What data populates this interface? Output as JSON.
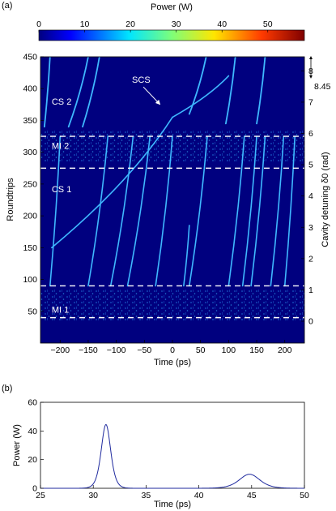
{
  "panels": {
    "a": "(a)",
    "b": "(b)"
  },
  "chart_data": [
    {
      "type": "heatmap",
      "colorbar": {
        "label": "Power (W)",
        "range": [
          0,
          58
        ],
        "ticks": [
          0,
          10,
          20,
          30,
          40,
          50
        ],
        "tick_labels": [
          "0",
          "10",
          "20",
          "30",
          "40",
          "50"
        ]
      },
      "xlabel": "Time (ps)",
      "ylabel": "Roundtrips",
      "y2label": "Cavity detuning δ0 (rad)",
      "xlim": [
        -235,
        235
      ],
      "ylim": [
        0,
        450
      ],
      "y2lim": [
        -0.7,
        8.45
      ],
      "xticks": [
        -200,
        -150,
        -100,
        -50,
        0,
        50,
        100,
        150,
        200
      ],
      "xtick_labels": [
        "−200",
        "−150",
        "−100",
        "−50",
        "0",
        "50",
        "100",
        "150",
        "200"
      ],
      "yticks": [
        50,
        100,
        150,
        200,
        250,
        300,
        350,
        400,
        450
      ],
      "ytick_labels": [
        "50",
        "100",
        "150",
        "200",
        "250",
        "300",
        "350",
        "400",
        "450"
      ],
      "y2ticks": [
        0,
        1,
        2,
        3,
        4,
        5,
        6,
        7,
        8
      ],
      "y2tick_labels": [
        "0",
        "1",
        "2",
        "3",
        "4",
        "5",
        "6",
        "7",
        "8"
      ],
      "y2_extra": {
        "value": 8.45,
        "label": "8.45"
      },
      "dashed_boundaries_roundtrips": [
        40,
        90,
        275,
        325
      ],
      "annotations": [
        {
          "text": "MI 1",
          "x": -215,
          "y": 48
        },
        {
          "text": "CS 1",
          "x": -215,
          "y": 237
        },
        {
          "text": "MI 2",
          "x": -215,
          "y": 305
        },
        {
          "text": "CS 2",
          "x": -215,
          "y": 375
        },
        {
          "text": "SCS",
          "x": -72,
          "y": 409,
          "arrow_to": [
            -22,
            375
          ]
        }
      ],
      "soliton_tracks": [
        {
          "start": [
            -218,
            90
          ],
          "end": [
            -200,
            325
          ]
        },
        {
          "start": [
            -150,
            90
          ],
          "end": [
            -115,
            325
          ]
        },
        {
          "start": [
            -110,
            90
          ],
          "end": [
            -70,
            325
          ]
        },
        {
          "start": [
            -80,
            90
          ],
          "end": [
            -40,
            325
          ]
        },
        {
          "start": [
            -30,
            90
          ],
          "end": [
            0,
            325
          ]
        },
        {
          "start": [
            30,
            90
          ],
          "end": [
            62,
            325
          ]
        },
        {
          "start": [
            100,
            90
          ],
          "end": [
            128,
            325
          ]
        },
        {
          "start": [
            125,
            90
          ],
          "end": [
            150,
            325
          ]
        },
        {
          "start": [
            140,
            90
          ],
          "end": [
            165,
            325
          ]
        },
        {
          "start": [
            175,
            90
          ],
          "end": [
            198,
            325
          ]
        },
        {
          "start": [
            200,
            90
          ],
          "end": [
            218,
            325
          ]
        },
        {
          "start": [
            -215,
            150
          ],
          "end": [
            0,
            355
          ]
        },
        {
          "start": [
            0,
            355
          ],
          "end": [
            100,
            420
          ]
        },
        {
          "start": [
            20,
            90
          ],
          "end": [
            30,
            185
          ]
        }
      ],
      "cs2_tracks": [
        {
          "start": [
            -228,
            340
          ],
          "end": [
            -218,
            450
          ]
        },
        {
          "start": [
            -185,
            340
          ],
          "end": [
            -150,
            450
          ]
        },
        {
          "start": [
            -160,
            340
          ],
          "end": [
            -130,
            450
          ]
        },
        {
          "start": [
            30,
            360
          ],
          "end": [
            60,
            450
          ]
        },
        {
          "start": [
            95,
            345
          ],
          "end": [
            112,
            450
          ]
        },
        {
          "start": [
            150,
            345
          ],
          "end": [
            165,
            450
          ]
        }
      ]
    },
    {
      "type": "line",
      "xlabel": "Time (ps)",
      "ylabel": "Power (W)",
      "xlim": [
        25,
        50
      ],
      "ylim": [
        0,
        60
      ],
      "xticks": [
        25,
        30,
        35,
        40,
        45,
        50
      ],
      "xtick_labels": [
        "25",
        "30",
        "35",
        "40",
        "45",
        "50"
      ],
      "yticks": [
        0,
        20,
        40,
        60
      ],
      "ytick_labels": [
        "0",
        "20",
        "40",
        "60"
      ],
      "peaks": [
        {
          "center": 31.2,
          "height": 44.5,
          "width": 0.6
        },
        {
          "center": 44.8,
          "height": 9.8,
          "width": 1.3
        }
      ],
      "line_color": "#1f2a9e"
    }
  ]
}
